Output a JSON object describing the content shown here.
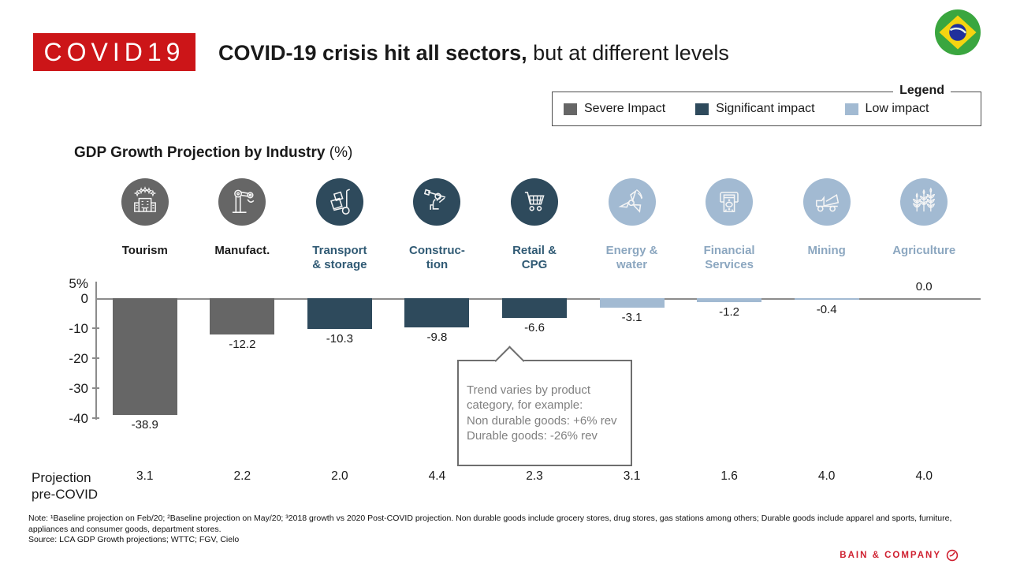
{
  "badge": {
    "label": "COVID19",
    "color": "#cc1518"
  },
  "header": {
    "title_bold": "COVID-19 crisis hit all sectors,",
    "title_rest": " but at different levels"
  },
  "legend": {
    "title": "Legend",
    "items": [
      {
        "key": "severe",
        "label": "Severe Impact",
        "color": "#666666",
        "label_color": "#1a1a1a"
      },
      {
        "key": "significant",
        "label": "Significant impact",
        "color": "#2e4a5c",
        "label_color": "#305a74"
      },
      {
        "key": "low",
        "label": "Low impact",
        "color": "#a2bad2",
        "label_color": "#8ca7c0"
      }
    ]
  },
  "chart_data": {
    "type": "bar",
    "title": "GDP Growth Projection by Industry",
    "title_suffix": " (%)",
    "categories": [
      "Tourism",
      "Manufact.",
      "Transport\n& storage",
      "Construc-\ntion",
      "Retail &\nCPG",
      "Energy &\nwater",
      "Financial\nServices",
      "Mining",
      "Agriculture"
    ],
    "values": [
      -38.9,
      -12.2,
      -10.3,
      -9.8,
      -6.6,
      -3.1,
      -1.2,
      -0.4,
      0.0
    ],
    "value_labels": [
      "-38.9",
      "-12.2",
      "-10.3",
      "-9.8",
      "-6.6",
      "-3.1",
      "-1.2",
      "-0.4",
      "0.0"
    ],
    "impact": [
      "severe",
      "severe",
      "significant",
      "significant",
      "significant",
      "low",
      "low",
      "low",
      "low"
    ],
    "icons": [
      "hotel-icon",
      "robot-arm-icon",
      "hand-truck-icon",
      "construction-worker-icon",
      "shopping-cart-icon",
      "wind-turbine-icon",
      "atm-icon",
      "dump-truck-icon",
      "wheat-icon"
    ],
    "y_axis": {
      "tick_labels": [
        "5%",
        "0",
        "-10",
        "-20",
        "-30",
        "-40"
      ],
      "tick_values": [
        5,
        0,
        -10,
        -20,
        -30,
        -40
      ],
      "ylim": [
        -40,
        5
      ]
    },
    "annotation": {
      "text": "Trend varies by product\ncategory, for example:\nNon durable goods: +6% rev\nDurable goods: -26% rev"
    },
    "projection_row": {
      "label": "Projection\npre-COVID",
      "values": [
        "3.1",
        "2.2",
        "2.0",
        "4.4",
        "2.3",
        "3.1",
        "1.6",
        "4.0",
        "4.0"
      ]
    }
  },
  "footnotes": {
    "note": "Note: ¹Baseline projection on Feb/20; ²Baseline projection on May/20; ³2018 growth vs 2020 Post-COVID projection. Non durable goods include grocery stores, drug stores, gas stations among others; Durable goods include apparel and sports, furniture, appliances and consumer goods, department stores.",
    "source": "Source: LCA GDP Growth projections; WTTC; FGV, Cielo"
  },
  "branding": {
    "name": "BAIN & COMPANY",
    "color": "#cf2030"
  }
}
